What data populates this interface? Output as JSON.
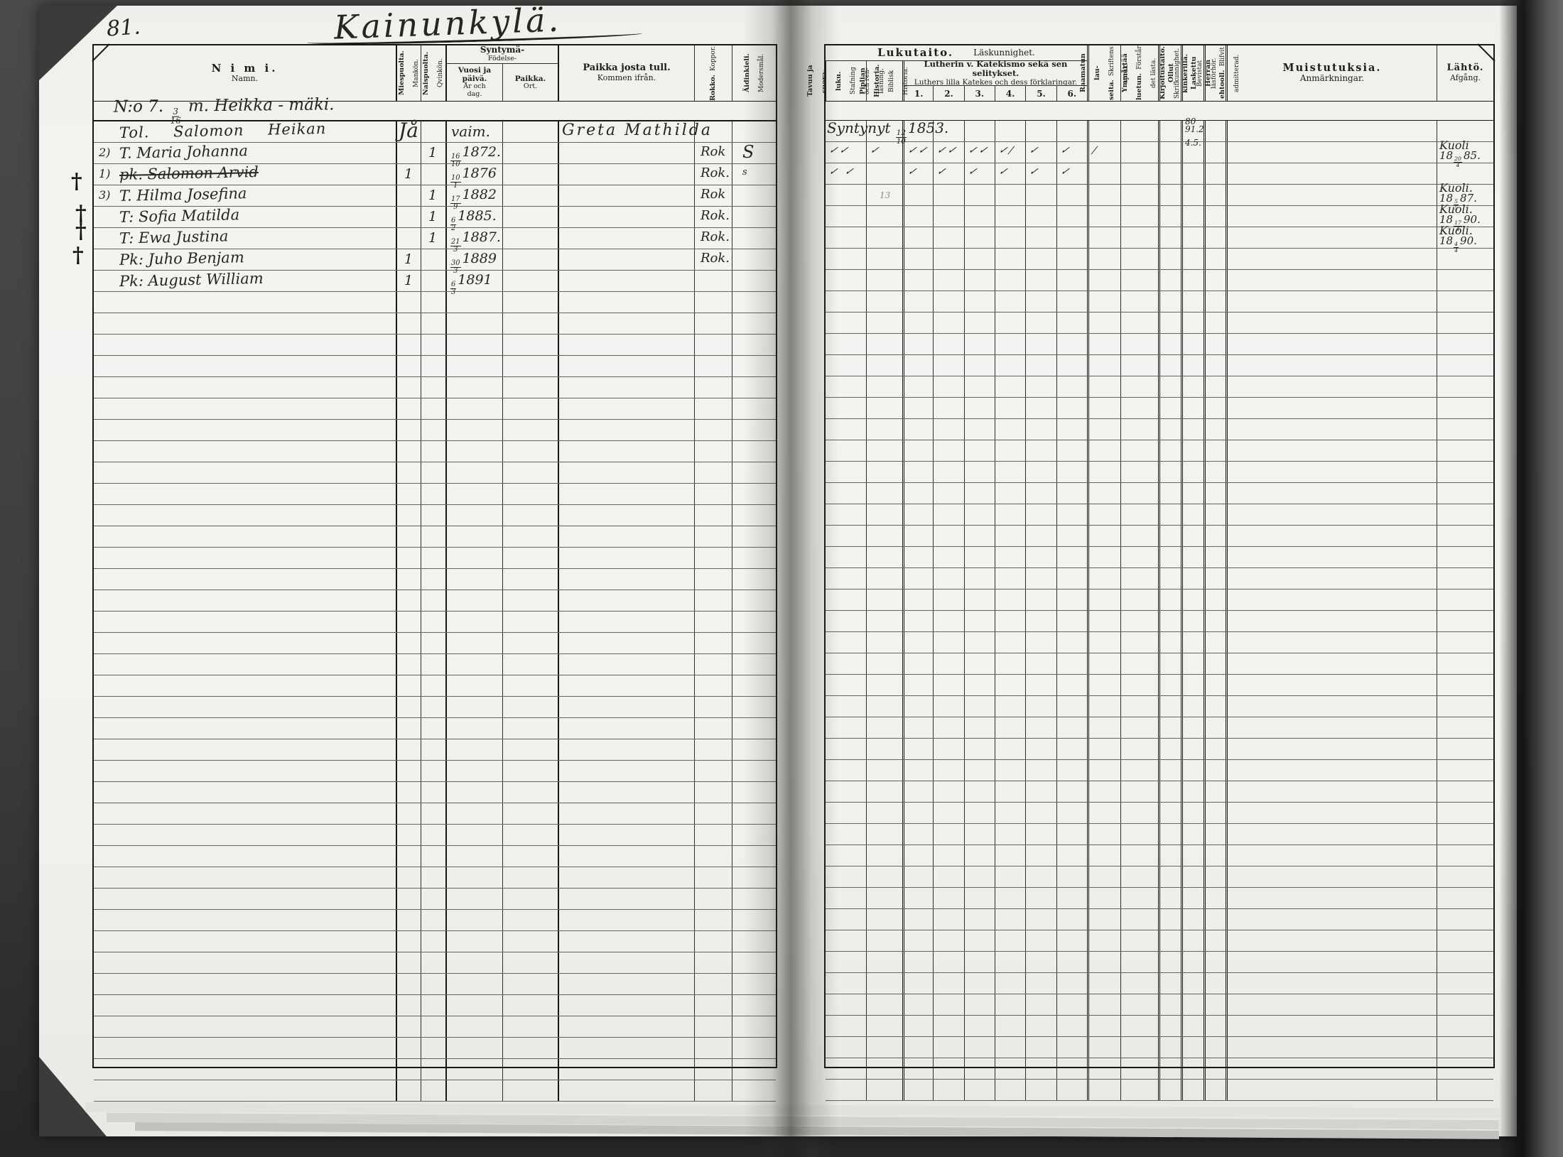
{
  "colors": {
    "paper": "#f2f1ee",
    "background": "#3d3d3d",
    "ink": "#26261f",
    "rule_line": "#67645c",
    "border": "#161614"
  },
  "page": {
    "page_number": "81.",
    "village_title": "Kainunkylä."
  },
  "group_heading": {
    "no": "N:o 7.",
    "frac_d": "3",
    "frac_m": "16",
    "unit": "m.",
    "name": "Heikka - mäki."
  },
  "header": {
    "left": {
      "nimi": {
        "fi": "N i m i.",
        "sv": "Namn."
      },
      "mies": {
        "fi": "Miespuolta.",
        "sv": "Mankön."
      },
      "nais": {
        "fi": "Naispuolta.",
        "sv": "Qvinkön."
      },
      "syntyma": {
        "fi": "Syntymä-",
        "sv": "Födelse-"
      },
      "vuosi": {
        "fi": "Vuosi ja\npäivä.",
        "sv": "År och\ndag."
      },
      "paikka": {
        "fi": "Paikka.",
        "sv": "Ort."
      },
      "kommen": {
        "fi": "Paikka josta tull.",
        "sv": "Kommen ifrån."
      },
      "rokko": {
        "fi": "Rokko.",
        "sv": "Koppor."
      },
      "lang": {
        "fi": "Äidinkieli.",
        "sv": "Modersmål."
      }
    },
    "right": {
      "title": {
        "fi": "Lukutaito.",
        "sv": "Läskunnighet."
      },
      "tavuu": {
        "fi": "Tavuu ja suora-\nluku.",
        "sv": "Stafning och ren-\nläsning."
      },
      "piplia": {
        "fi": "Piplian Historia.",
        "sv": "Biblisk Historia."
      },
      "katek": {
        "fi": "Lutherin v. Katekismo sekä sen\nselitykset.",
        "sv": "Luthers lilla Katekes och dess förklaringar."
      },
      "katek_cols": [
        "1.",
        "2.",
        "3.",
        "4.",
        "5.",
        "6."
      ],
      "raamatun": {
        "fi": "Raamatun lau-\nseita.",
        "sv": "Skriftens språk."
      },
      "ymmartaa": {
        "fi": "Ymmärtää luetun.",
        "sv": "Förstår det lästa."
      },
      "kirjoitus": {
        "fi": "Kirjoitustaito.",
        "sv": "Skrifkunnighet."
      },
      "kinkeri": {
        "fi": "Ollut kinkerillä.",
        "sv": "Bevistat läsförhör."
      },
      "ehtoollinen": {
        "fi": "Laskettu Herran ehtooll.",
        "sv": "Blifvit admitterad."
      },
      "muistutuksia": {
        "fi": "Muistutuksia.",
        "sv": "Anmärkningar."
      },
      "lahto": {
        "fi": "Lähtö.",
        "sv": "Afgång."
      }
    }
  },
  "margin_crosses": [
    "†",
    "†",
    "†",
    "†"
  ],
  "empty_row_count": 38,
  "rows": [
    {
      "no": "",
      "name": "Tol. Salomon Heikan",
      "sp": true,
      "gender_note": "Jå",
      "birth_note": "vaim.",
      "from": "Greta Mathilda",
      "right_note": {
        "pre": "Syntynyt",
        "d": "12",
        "m": "10",
        "y": "1853."
      },
      "kink": "80\n91.2"
    },
    {
      "no": "2)",
      "name": "T. Maria Johanna",
      "f": "1",
      "birth": {
        "d": "16",
        "m": "10",
        "y": "1872."
      },
      "rok": "Rok",
      "lang": "S",
      "tavuu": "✓✓",
      "piplia": "✓",
      "kat": [
        "✓✓",
        "✓✓",
        "✓✓",
        "✓/",
        "✓",
        "✓"
      ],
      "raam": "/",
      "kink": "4.5.",
      "lahto": {
        "l1": "Kuoli",
        "pre": "18",
        "d": "20",
        "m": "4",
        "y": "85."
      }
    },
    {
      "no": "1)",
      "name": "pk. Salomon Arvid",
      "strike": true,
      "m": "1",
      "birth": {
        "d": "10",
        "m": "1",
        "y": "1876"
      },
      "rok": "Rok.",
      "lang": "s",
      "tavuu": "✓ ✓",
      "kat": [
        "✓",
        "✓",
        "✓",
        "✓",
        "✓",
        "✓"
      ]
    },
    {
      "no": "3)",
      "name": "T. Hilma Josefina",
      "f": "1",
      "birth": {
        "d": "17",
        "m": "9",
        "y": "1882"
      },
      "rok": "Rok",
      "piplia_faint": "13",
      "lahto": {
        "l1": "Kuoli.",
        "pre": "18",
        "d": "5",
        "m": "5",
        "y": "87."
      }
    },
    {
      "no": "",
      "name": "T: Sofia Matilda",
      "f": "1",
      "birth": {
        "d": "6",
        "m": "2",
        "y": "1885."
      },
      "rok": "Rok.",
      "lahto": {
        "l1": "Kuoli.",
        "pre": "18",
        "d": "17",
        "m": "4",
        "y": "90."
      }
    },
    {
      "no": "",
      "name": "T: Ewa Justina",
      "f": "1",
      "birth": {
        "d": "21",
        "m": "3",
        "y": "1887."
      },
      "rok": "Rok.",
      "lahto": {
        "l1": "Kuoli.",
        "pre": "18",
        "d": "4",
        "m": "4",
        "y": "90."
      }
    },
    {
      "no": "",
      "name": "Pk: Juho Benjam",
      "m": "1",
      "birth": {
        "d": "30",
        "m": "3",
        "y": "1889"
      },
      "rok": "Rok."
    },
    {
      "no": "",
      "name": "Pk: August William",
      "m": "1",
      "birth": {
        "d": "6",
        "m": "3",
        "y": "1891"
      }
    }
  ]
}
